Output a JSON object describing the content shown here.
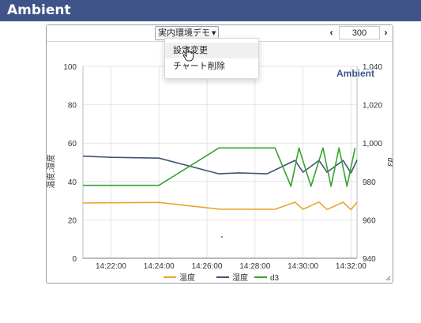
{
  "app": {
    "title": "Ambient"
  },
  "panel": {
    "menu_label": "実内環境デモ",
    "pager": {
      "prev": "‹",
      "next": "›",
      "value": "300"
    }
  },
  "dropdown": {
    "items": [
      {
        "label": "設定変更",
        "hovered": true
      },
      {
        "label": "チャート削除",
        "hovered": false
      }
    ]
  },
  "icons": {
    "caret": "caret-down-icon",
    "cursor": "hand-pointer-icon",
    "resize": "resize-grip-icon"
  },
  "colors": {
    "header": "#3f5489",
    "series_temperature": "#e8a72c",
    "series_humidity": "#44527a",
    "series_d3": "#36a32e"
  },
  "chart_data": {
    "type": "line",
    "title": "Ambient",
    "ylabel_left": "温度,湿度",
    "ylabel_right": "d3",
    "ylim_left": [
      0,
      100
    ],
    "ylim_right": [
      940,
      1040
    ],
    "y_ticks_left": [
      "0",
      "20",
      "40",
      "60",
      "80",
      "100"
    ],
    "y_ticks_right": [
      "940",
      "960",
      "980",
      "1,000",
      "1,020",
      "1,040"
    ],
    "xlim": [
      "14:20:50",
      "14:32:15"
    ],
    "x_ticks": [
      "14:22:00",
      "14:24:00",
      "14:26:00",
      "14:28:00",
      "14:30:00",
      "14:32:00"
    ],
    "grid": true,
    "legend_position": "bottom",
    "series": [
      {
        "name": "温度",
        "axis": "left",
        "x": [
          "14:20:50",
          "14:24:00",
          "14:26:30",
          "14:28:50",
          "14:29:40",
          "14:30:00",
          "14:30:40",
          "14:31:00",
          "14:31:40",
          "14:32:00",
          "14:32:15"
        ],
        "y": [
          28.8,
          29.1,
          25.6,
          25.5,
          29.2,
          25.5,
          29.3,
          25.4,
          29.2,
          25.3,
          29.2
        ]
      },
      {
        "name": "湿度",
        "axis": "left",
        "x": [
          "14:20:50",
          "14:22:00",
          "14:24:00",
          "14:26:30",
          "14:27:20",
          "14:28:30",
          "14:29:40",
          "14:30:00",
          "14:30:40",
          "14:31:00",
          "14:31:40",
          "14:32:00",
          "14:32:15"
        ],
        "y": [
          53.2,
          52.6,
          52.2,
          44.0,
          44.5,
          44.0,
          51.0,
          44.8,
          51.0,
          44.8,
          51.0,
          44.5,
          51.2
        ]
      },
      {
        "name": "d3",
        "axis": "right",
        "x": [
          "14:20:50",
          "14:24:00",
          "14:26:30",
          "14:28:50",
          "14:29:30",
          "14:29:50",
          "14:30:20",
          "14:30:50",
          "14:31:10",
          "14:31:30",
          "14:31:50",
          "14:32:10"
        ],
        "y": [
          978,
          978,
          997.5,
          997.5,
          977.5,
          997.5,
          977.5,
          997.5,
          977.5,
          997.5,
          977.5,
          997.5
        ]
      }
    ]
  }
}
